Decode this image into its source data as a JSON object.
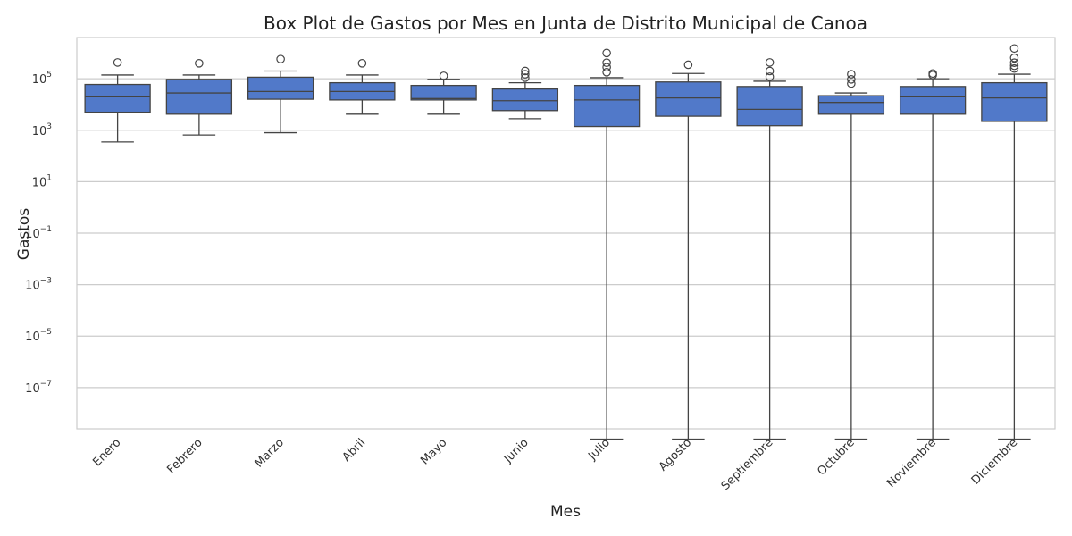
{
  "chart_data": {
    "type": "box",
    "title": "Box Plot de Gastos por Mes en Junta de Distrito Municipal de Canoa",
    "xlabel": "Mes",
    "ylabel": "Gastos",
    "y_scale": "log",
    "y_ticks": [
      {
        "base": "10",
        "exp": "5",
        "value": 100000
      },
      {
        "base": "10",
        "exp": "3",
        "value": 1000
      },
      {
        "base": "10",
        "exp": "1",
        "value": 10
      },
      {
        "base": "10",
        "exp": "−1",
        "value": 0.1
      },
      {
        "base": "10",
        "exp": "−3",
        "value": 0.001
      },
      {
        "base": "10",
        "exp": "−5",
        "value": 1e-05
      },
      {
        "base": "10",
        "exp": "−7",
        "value": 1e-07
      }
    ],
    "ylim": [
      2.5e-09,
      4000000
    ],
    "grid": true,
    "box_color": "#5179c9",
    "categories": [
      "Enero",
      "Febrero",
      "Marzo",
      "Abril",
      "Mayo",
      "Junio",
      "Julio",
      "Agosto",
      "Septiembre",
      "Octubre",
      "Noviembre",
      "Diciembre"
    ],
    "boxes": [
      {
        "whislo": 350,
        "q1": 5000,
        "med": 20000,
        "q3": 60000,
        "whishi": 140000,
        "fliers": [
          430000
        ]
      },
      {
        "whislo": 650,
        "q1": 4200,
        "med": 28000,
        "q3": 95000,
        "whishi": 140000,
        "fliers": [
          400000
        ]
      },
      {
        "whislo": 800,
        "q1": 16000,
        "med": 32000,
        "q3": 115000,
        "whishi": 200000,
        "fliers": [
          580000
        ]
      },
      {
        "whislo": 4200,
        "q1": 15000,
        "med": 32000,
        "q3": 70000,
        "whishi": 140000,
        "fliers": [
          400000
        ]
      },
      {
        "whislo": 4200,
        "q1": 15000,
        "med": 17000,
        "q3": 55000,
        "whishi": 95000,
        "fliers": [
          130000
        ]
      },
      {
        "whislo": 2800,
        "q1": 5800,
        "med": 14000,
        "q3": 40000,
        "whishi": 70000,
        "fliers": [
          110000,
          150000,
          200000
        ]
      },
      {
        "whislo": 1e-09,
        "q1": 1400,
        "med": 15000,
        "q3": 55000,
        "whishi": 110000,
        "fliers": [
          180000,
          280000,
          420000,
          1000000
        ]
      },
      {
        "whislo": 1e-09,
        "q1": 3500,
        "med": 18000,
        "q3": 75000,
        "whishi": 160000,
        "fliers": [
          350000
        ]
      },
      {
        "whislo": 1e-09,
        "q1": 1500,
        "med": 6500,
        "q3": 50000,
        "whishi": 80000,
        "fliers": [
          120000,
          200000,
          430000
        ]
      },
      {
        "whislo": 1e-09,
        "q1": 4200,
        "med": 12000,
        "q3": 22000,
        "whishi": 28000,
        "fliers": [
          65000,
          95000,
          150000
        ]
      },
      {
        "whislo": 1e-09,
        "q1": 4200,
        "med": 20000,
        "q3": 50000,
        "whishi": 100000,
        "fliers": [
          140000,
          160000
        ]
      },
      {
        "whislo": 1e-09,
        "q1": 2200,
        "med": 18000,
        "q3": 70000,
        "whishi": 150000,
        "fliers": [
          250000,
          320000,
          420000,
          650000,
          1500000
        ]
      }
    ]
  }
}
